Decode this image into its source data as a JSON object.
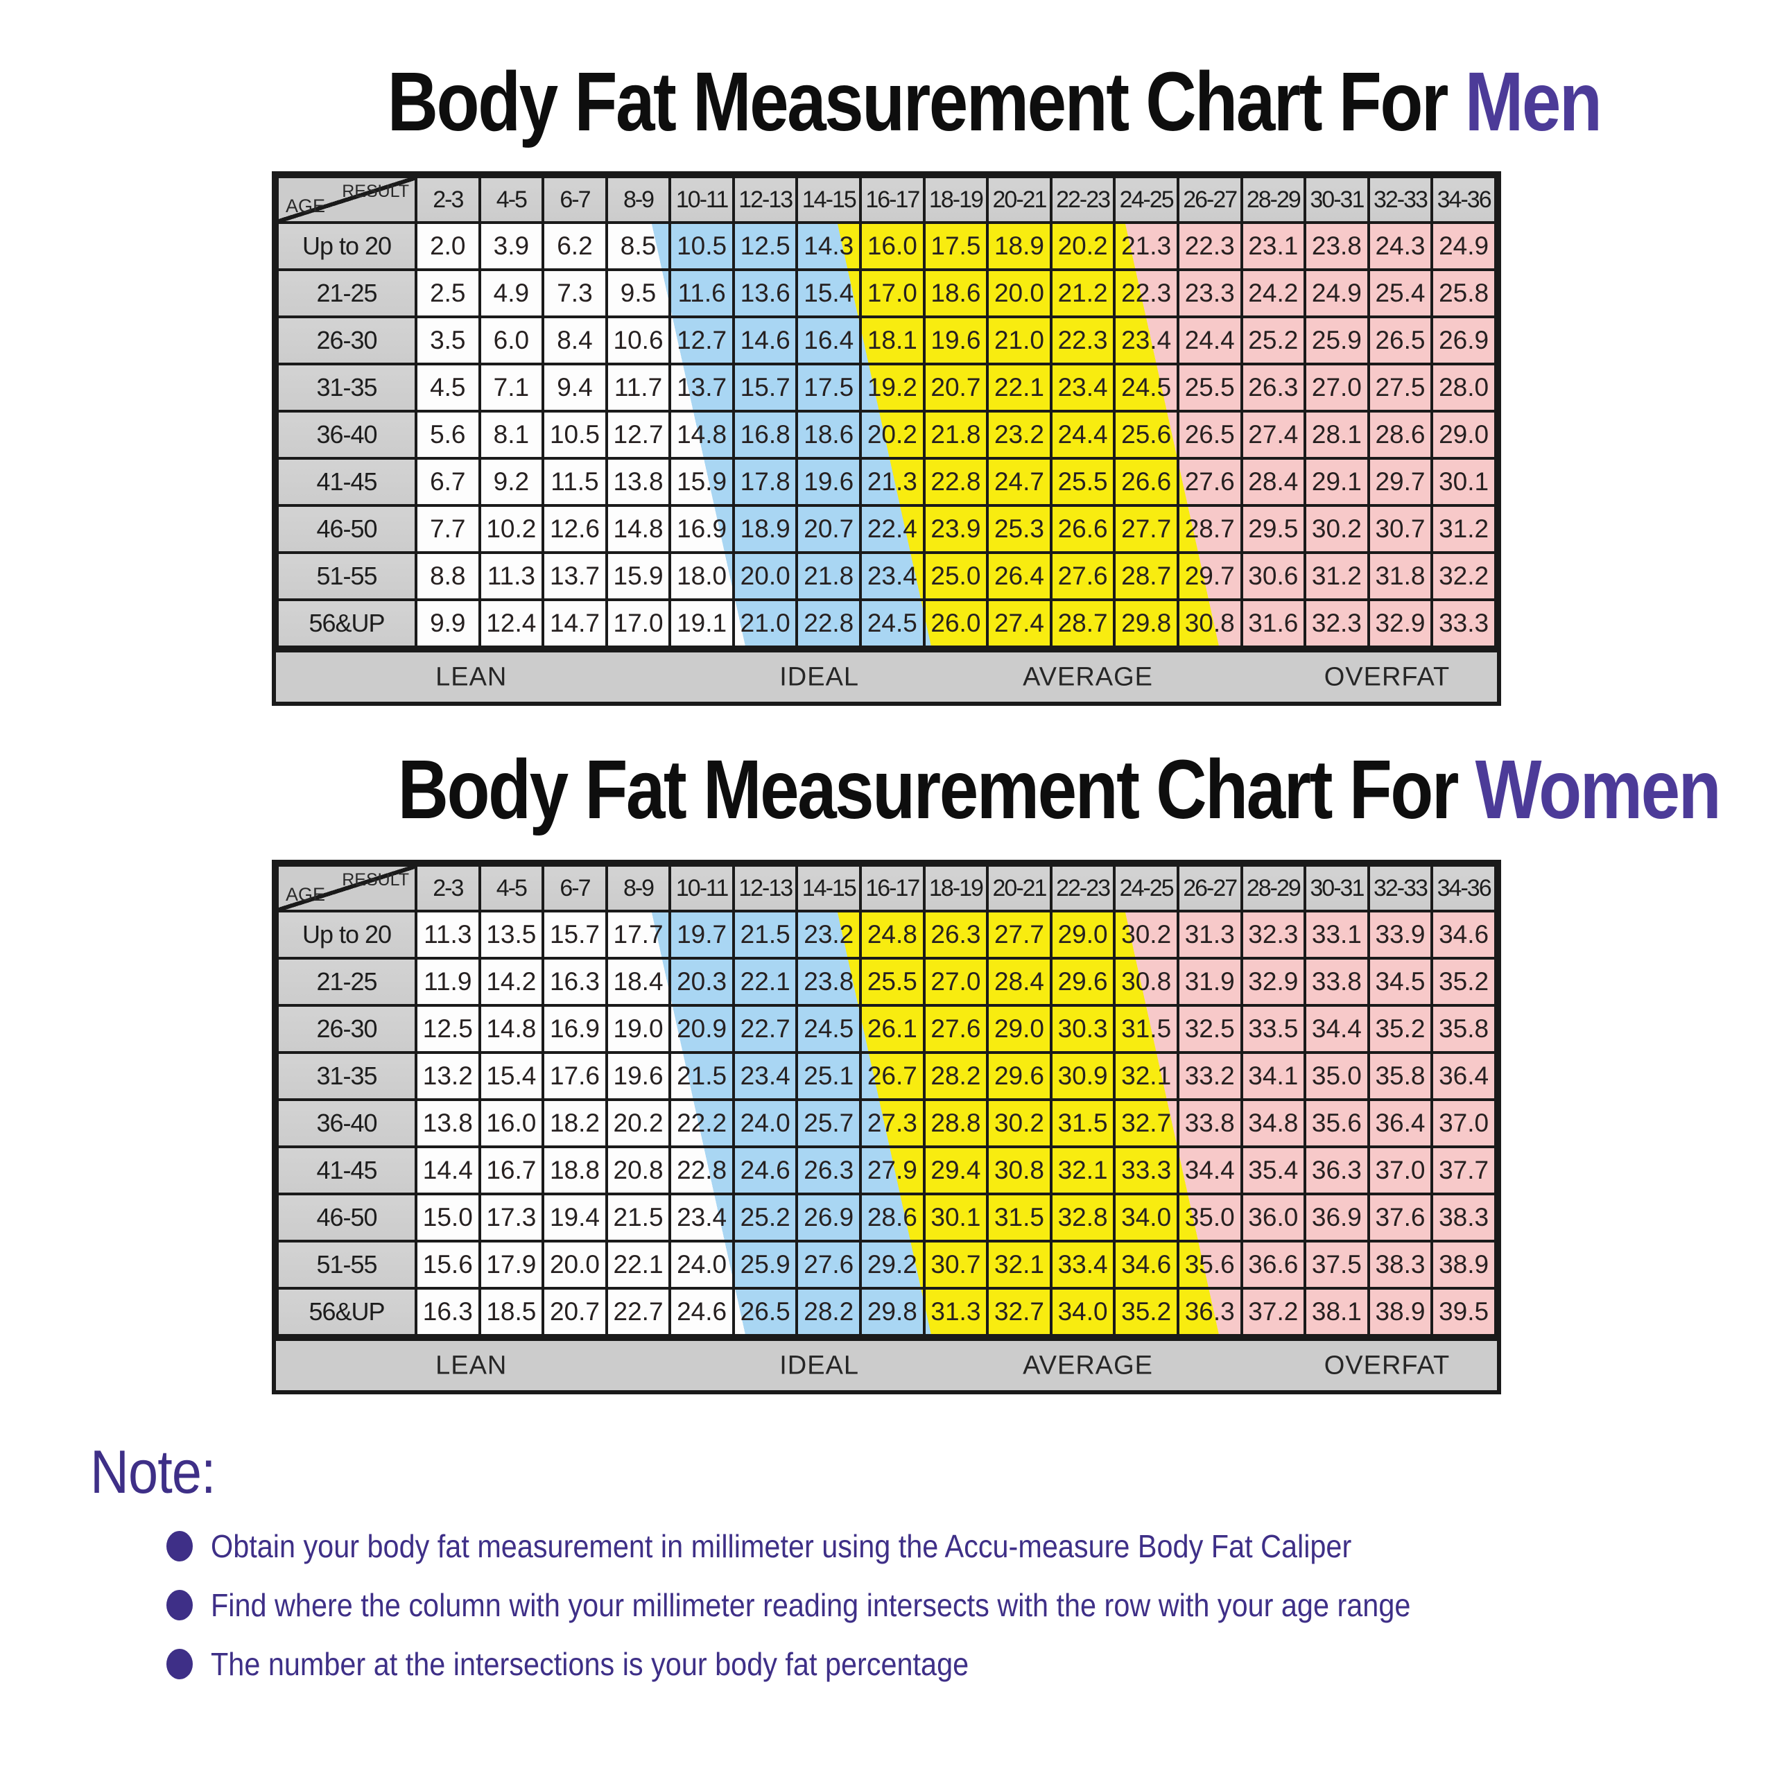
{
  "colors": {
    "accent_purple": "#4c3b98",
    "note_purple": "#3e2f87",
    "zone_lean_white": "#fdfdfd",
    "zone_ideal_blue": "#a9d6f3",
    "zone_average_yellow": "#f8ec10",
    "zone_overfat_pink": "#f7c9c9",
    "header_gray": "#cccccc",
    "border_black": "#1a1a1a"
  },
  "chart_data": [
    {
      "type": "table",
      "title_prefix": "Body Fat Measurement Chart For ",
      "title_accent": "Men",
      "corner_top": "RESULT",
      "corner_bottom": "AGE",
      "columns": [
        "2-3",
        "4-5",
        "6-7",
        "8-9",
        "10-11",
        "12-13",
        "14-15",
        "16-17",
        "18-19",
        "20-21",
        "22-23",
        "24-25",
        "26-27",
        "28-29",
        "30-31",
        "32-33",
        "34-36"
      ],
      "rows": [
        {
          "age": "Up to 20",
          "values": [
            "2.0",
            "3.9",
            "6.2",
            "8.5",
            "10.5",
            "12.5",
            "14.3",
            "16.0",
            "17.5",
            "18.9",
            "20.2",
            "21.3",
            "22.3",
            "23.1",
            "23.8",
            "24.3",
            "24.9"
          ]
        },
        {
          "age": "21-25",
          "values": [
            "2.5",
            "4.9",
            "7.3",
            "9.5",
            "11.6",
            "13.6",
            "15.4",
            "17.0",
            "18.6",
            "20.0",
            "21.2",
            "22.3",
            "23.3",
            "24.2",
            "24.9",
            "25.4",
            "25.8"
          ]
        },
        {
          "age": "26-30",
          "values": [
            "3.5",
            "6.0",
            "8.4",
            "10.6",
            "12.7",
            "14.6",
            "16.4",
            "18.1",
            "19.6",
            "21.0",
            "22.3",
            "23.4",
            "24.4",
            "25.2",
            "25.9",
            "26.5",
            "26.9"
          ]
        },
        {
          "age": "31-35",
          "values": [
            "4.5",
            "7.1",
            "9.4",
            "11.7",
            "13.7",
            "15.7",
            "17.5",
            "19.2",
            "20.7",
            "22.1",
            "23.4",
            "24.5",
            "25.5",
            "26.3",
            "27.0",
            "27.5",
            "28.0"
          ]
        },
        {
          "age": "36-40",
          "values": [
            "5.6",
            "8.1",
            "10.5",
            "12.7",
            "14.8",
            "16.8",
            "18.6",
            "20.2",
            "21.8",
            "23.2",
            "24.4",
            "25.6",
            "26.5",
            "27.4",
            "28.1",
            "28.6",
            "29.0"
          ]
        },
        {
          "age": "41-45",
          "values": [
            "6.7",
            "9.2",
            "11.5",
            "13.8",
            "15.9",
            "17.8",
            "19.6",
            "21.3",
            "22.8",
            "24.7",
            "25.5",
            "26.6",
            "27.6",
            "28.4",
            "29.1",
            "29.7",
            "30.1"
          ]
        },
        {
          "age": "46-50",
          "values": [
            "7.7",
            "10.2",
            "12.6",
            "14.8",
            "16.9",
            "18.9",
            "20.7",
            "22.4",
            "23.9",
            "25.3",
            "26.6",
            "27.7",
            "28.7",
            "29.5",
            "30.2",
            "30.7",
            "31.2"
          ]
        },
        {
          "age": "51-55",
          "values": [
            "8.8",
            "11.3",
            "13.7",
            "15.9",
            "18.0",
            "20.0",
            "21.8",
            "23.4",
            "25.0",
            "26.4",
            "27.6",
            "28.7",
            "29.7",
            "30.6",
            "31.2",
            "31.8",
            "32.2"
          ]
        },
        {
          "age": "56&UP",
          "values": [
            "9.9",
            "12.4",
            "14.7",
            "17.0",
            "19.1",
            "21.0",
            "22.8",
            "24.5",
            "26.0",
            "27.4",
            "28.7",
            "29.8",
            "30.8",
            "31.6",
            "32.3",
            "32.9",
            "33.3"
          ]
        }
      ],
      "zones": [
        "LEAN",
        "IDEAL",
        "AVERAGE",
        "OVERFAT"
      ]
    },
    {
      "type": "table",
      "title_prefix": "Body Fat Measurement Chart For ",
      "title_accent": "Women",
      "corner_top": "RESULT",
      "corner_bottom": "AGE",
      "columns": [
        "2-3",
        "4-5",
        "6-7",
        "8-9",
        "10-11",
        "12-13",
        "14-15",
        "16-17",
        "18-19",
        "20-21",
        "22-23",
        "24-25",
        "26-27",
        "28-29",
        "30-31",
        "32-33",
        "34-36"
      ],
      "rows": [
        {
          "age": "Up to 20",
          "values": [
            "11.3",
            "13.5",
            "15.7",
            "17.7",
            "19.7",
            "21.5",
            "23.2",
            "24.8",
            "26.3",
            "27.7",
            "29.0",
            "30.2",
            "31.3",
            "32.3",
            "33.1",
            "33.9",
            "34.6"
          ]
        },
        {
          "age": "21-25",
          "values": [
            "11.9",
            "14.2",
            "16.3",
            "18.4",
            "20.3",
            "22.1",
            "23.8",
            "25.5",
            "27.0",
            "28.4",
            "29.6",
            "30.8",
            "31.9",
            "32.9",
            "33.8",
            "34.5",
            "35.2"
          ]
        },
        {
          "age": "26-30",
          "values": [
            "12.5",
            "14.8",
            "16.9",
            "19.0",
            "20.9",
            "22.7",
            "24.5",
            "26.1",
            "27.6",
            "29.0",
            "30.3",
            "31.5",
            "32.5",
            "33.5",
            "34.4",
            "35.2",
            "35.8"
          ]
        },
        {
          "age": "31-35",
          "values": [
            "13.2",
            "15.4",
            "17.6",
            "19.6",
            "21.5",
            "23.4",
            "25.1",
            "26.7",
            "28.2",
            "29.6",
            "30.9",
            "32.1",
            "33.2",
            "34.1",
            "35.0",
            "35.8",
            "36.4"
          ]
        },
        {
          "age": "36-40",
          "values": [
            "13.8",
            "16.0",
            "18.2",
            "20.2",
            "22.2",
            "24.0",
            "25.7",
            "27.3",
            "28.8",
            "30.2",
            "31.5",
            "32.7",
            "33.8",
            "34.8",
            "35.6",
            "36.4",
            "37.0"
          ]
        },
        {
          "age": "41-45",
          "values": [
            "14.4",
            "16.7",
            "18.8",
            "20.8",
            "22.8",
            "24.6",
            "26.3",
            "27.9",
            "29.4",
            "30.8",
            "32.1",
            "33.3",
            "34.4",
            "35.4",
            "36.3",
            "37.0",
            "37.7"
          ]
        },
        {
          "age": "46-50",
          "values": [
            "15.0",
            "17.3",
            "19.4",
            "21.5",
            "23.4",
            "25.2",
            "26.9",
            "28.6",
            "30.1",
            "31.5",
            "32.8",
            "34.0",
            "35.0",
            "36.0",
            "36.9",
            "37.6",
            "38.3"
          ]
        },
        {
          "age": "51-55",
          "values": [
            "15.6",
            "17.9",
            "20.0",
            "22.1",
            "24.0",
            "25.9",
            "27.6",
            "29.2",
            "30.7",
            "32.1",
            "33.4",
            "34.6",
            "35.6",
            "36.6",
            "37.5",
            "38.3",
            "38.9"
          ]
        },
        {
          "age": "56&UP",
          "values": [
            "16.3",
            "18.5",
            "20.7",
            "22.7",
            "24.6",
            "26.5",
            "28.2",
            "29.8",
            "31.3",
            "32.7",
            "34.0",
            "35.2",
            "36.3",
            "37.2",
            "38.1",
            "38.9",
            "39.5"
          ]
        }
      ],
      "zones": [
        "LEAN",
        "IDEAL",
        "AVERAGE",
        "OVERFAT"
      ]
    }
  ],
  "note": {
    "heading": "Note:",
    "bullets": [
      "Obtain your body fat measurement in millimeter using the Accu-measure Body Fat Caliper",
      "Find where the column with your millimeter reading intersects with the row with your age range",
      "The number at the intersections is your body fat percentage"
    ]
  }
}
